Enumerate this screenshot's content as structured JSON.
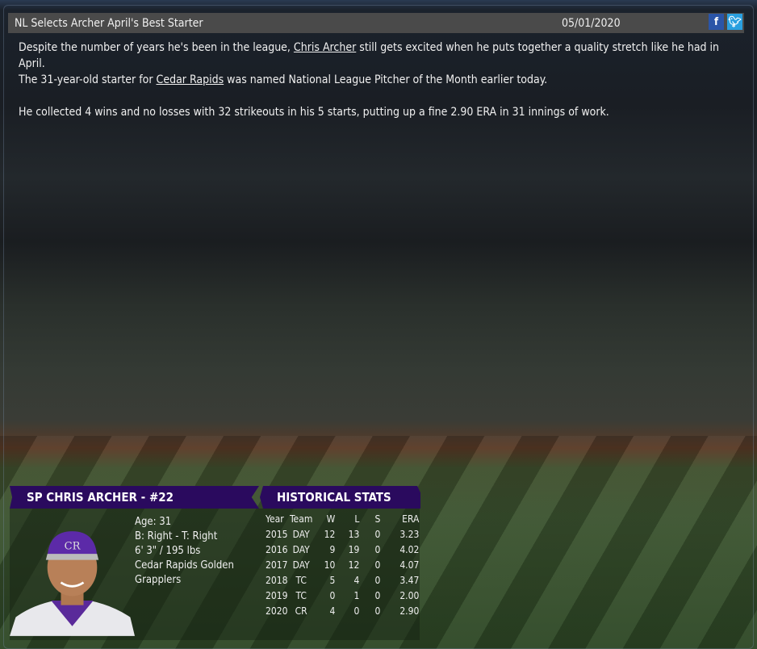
{
  "article": {
    "title": "NL Selects Archer April's Best Starter",
    "date": "05/01/2020",
    "share_icons": [
      "facebook-icon",
      "twitter-icon"
    ],
    "p1_a": "Despite the number of years he's been in the league, ",
    "p1_link": "Chris Archer",
    "p1_b": " still gets excited when he puts together a quality stretch like he had in April.",
    "p1_c": "The 31-year-old starter for ",
    "p1_link2": "Cedar Rapids",
    "p1_d": " was named National League Pitcher of the Month earlier today.",
    "p2": "He collected 4 wins and no losses with 32 strikeouts in his 5 starts, putting up a fine 2.90 ERA in 31 innings of work."
  },
  "player": {
    "header": "SP CHRIS ARCHER - #22",
    "age": "Age: 31",
    "bats_throws": "B: Right - T: Right",
    "size": "6' 3\" / 195 lbs",
    "team": "Cedar Rapids Golden Grapplers",
    "cap_logo": "CR"
  },
  "stats": {
    "header": "HISTORICAL STATS",
    "columns": [
      "Year",
      "Team",
      "W",
      "L",
      "S",
      "ERA"
    ],
    "rows": [
      [
        "2015",
        "DAY",
        "12",
        "13",
        "0",
        "3.23"
      ],
      [
        "2016",
        "DAY",
        "9",
        "19",
        "0",
        "4.02"
      ],
      [
        "2017",
        "DAY",
        "10",
        "12",
        "0",
        "4.07"
      ],
      [
        "2018",
        "TC",
        "5",
        "4",
        "0",
        "3.47"
      ],
      [
        "2019",
        "TC",
        "0",
        "1",
        "0",
        "2.00"
      ],
      [
        "2020",
        "CR",
        "4",
        "0",
        "0",
        "2.90"
      ]
    ]
  },
  "colors": {
    "banner": "#2a0a5e",
    "titlebar": "#4a4a4a",
    "facebook": "#2b55a8",
    "twitter": "#2aa0e0"
  }
}
